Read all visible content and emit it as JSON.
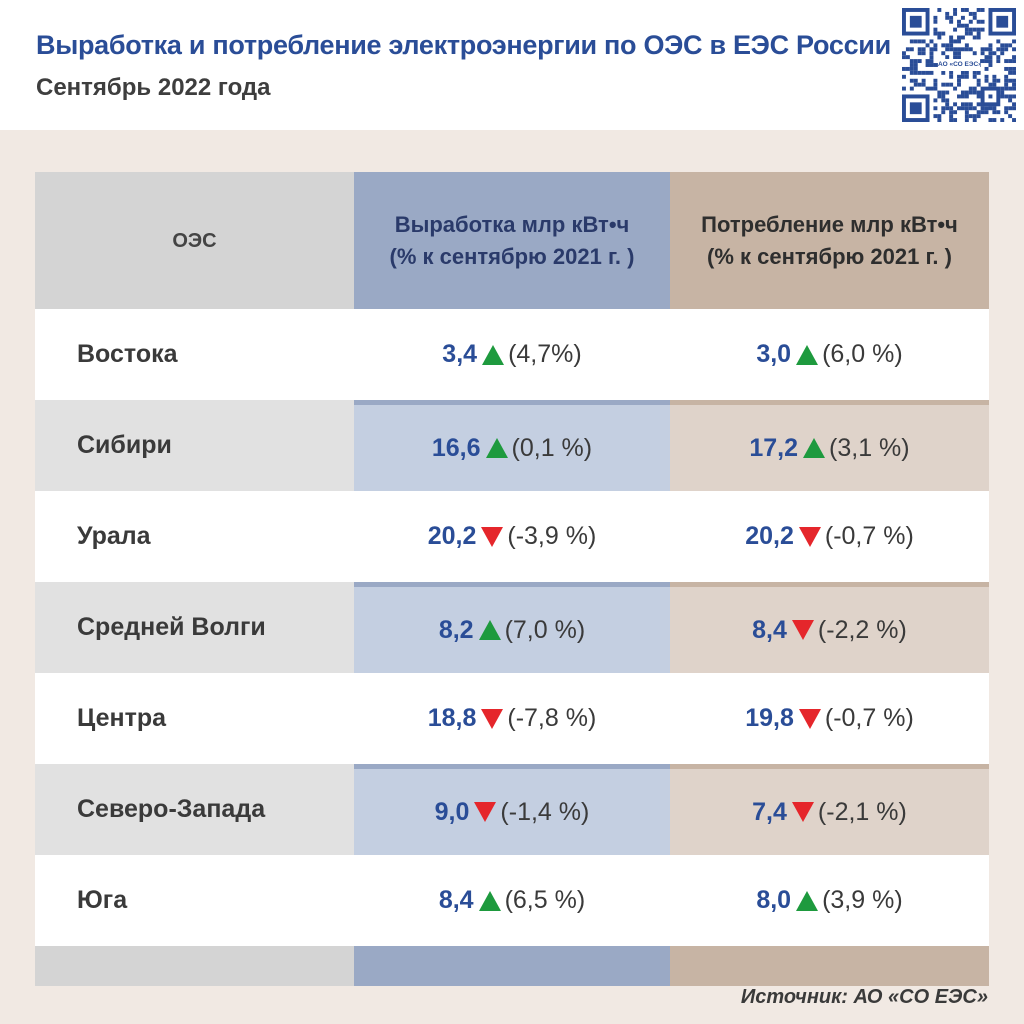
{
  "title": "Выработка и потребление электроэнергии по ОЭС в ЕЭС России",
  "subtitle": "Сентябрь 2022 года",
  "qr_label": "АО «СО ЕЭС»",
  "source": "Источник: АО «СО ЕЭС»",
  "colors": {
    "up": "#1e9a3e",
    "down": "#e5262b",
    "accent": "#2a4d97"
  },
  "chart_data": {
    "type": "table",
    "columns": [
      "ОЭС",
      [
        "Выработка млр кВт•ч",
        "(% к сентябрю 2021 г. )"
      ],
      [
        "Потребление млр кВт•ч",
        "(% к сентябрю 2021 г. )"
      ]
    ],
    "rows": [
      {
        "name": "Востока",
        "gen": {
          "value": "3,4",
          "dir": "up",
          "pct": "(4,7%)"
        },
        "cons": {
          "value": "3,0",
          "dir": "up",
          "pct": "(6,0 %)"
        }
      },
      {
        "name": "Сибири",
        "gen": {
          "value": "16,6",
          "dir": "up",
          "pct": "(0,1 %)"
        },
        "cons": {
          "value": "17,2",
          "dir": "up",
          "pct": "(3,1 %)"
        }
      },
      {
        "name": "Урала",
        "gen": {
          "value": "20,2",
          "dir": "down",
          "pct": "(-3,9 %)"
        },
        "cons": {
          "value": "20,2",
          "dir": "down",
          "pct": "(-0,7 %)"
        }
      },
      {
        "name": "Средней Волги",
        "gen": {
          "value": "8,2",
          "dir": "up",
          "pct": "(7,0 %)"
        },
        "cons": {
          "value": "8,4",
          "dir": "down",
          "pct": "(-2,2 %)"
        }
      },
      {
        "name": "Центра",
        "gen": {
          "value": "18,8",
          "dir": "down",
          "pct": "(-7,8 %)"
        },
        "cons": {
          "value": "19,8",
          "dir": "down",
          "pct": "(-0,7 %)"
        }
      },
      {
        "name": "Северо-Запада",
        "gen": {
          "value": "9,0",
          "dir": "down",
          "pct": "(-1,4 %)"
        },
        "cons": {
          "value": "7,4",
          "dir": "down",
          "pct": "(-2,1 %)"
        }
      },
      {
        "name": "Юга",
        "gen": {
          "value": "8,4",
          "dir": "up",
          "pct": "(6,5 %)"
        },
        "cons": {
          "value": "8,0",
          "dir": "up",
          "pct": "(3,9 %)"
        }
      }
    ]
  }
}
